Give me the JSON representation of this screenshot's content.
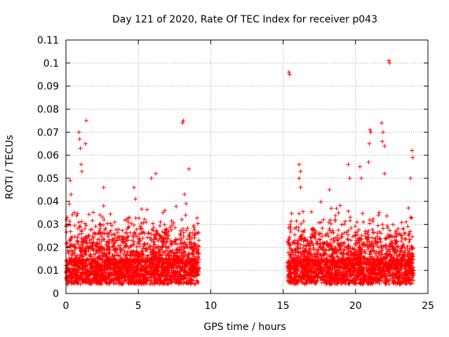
{
  "chart_data": {
    "type": "scatter",
    "title": "Day 121 of 2020, Rate Of TEC Index for receiver p043",
    "xlabel": "GPS time / hours",
    "ylabel": "ROTI / TECUs",
    "xlim": [
      0,
      25
    ],
    "ylim": [
      0,
      0.11
    ],
    "xticks": [
      0,
      5,
      10,
      15,
      20,
      25
    ],
    "xtick_labels": [
      "0",
      "5",
      "10",
      "15",
      "20",
      "25"
    ],
    "yticks": [
      0,
      0.01,
      0.02,
      0.03,
      0.04,
      0.05,
      0.06,
      0.07,
      0.08,
      0.09,
      0.1,
      0.11
    ],
    "ytick_labels": [
      "0",
      "0.01",
      "0.02",
      "0.03",
      "0.04",
      "0.05",
      "0.06",
      "0.07",
      "0.08",
      "0.09",
      "0.1",
      "0.11"
    ],
    "grid": true,
    "marker": "+",
    "color": "#ff0000",
    "series": [
      {
        "name": "p043 ROTI",
        "segments": [
          [
            0.0,
            9.2
          ],
          [
            15.3,
            24.0
          ]
        ],
        "notable_points": [
          [
            0.3,
            0.049
          ],
          [
            0.35,
            0.043
          ],
          [
            0.9,
            0.07
          ],
          [
            0.95,
            0.067
          ],
          [
            1.0,
            0.063
          ],
          [
            1.05,
            0.056
          ],
          [
            1.1,
            0.053
          ],
          [
            1.4,
            0.075
          ],
          [
            1.35,
            0.065
          ],
          [
            2.6,
            0.046
          ],
          [
            2.6,
            0.038
          ],
          [
            4.2,
            0.032
          ],
          [
            4.7,
            0.046
          ],
          [
            4.8,
            0.041
          ],
          [
            5.9,
            0.05
          ],
          [
            6.2,
            0.052
          ],
          [
            8.1,
            0.075
          ],
          [
            8.05,
            0.074
          ],
          [
            8.2,
            0.043
          ],
          [
            8.5,
            0.054
          ],
          [
            15.4,
            0.096
          ],
          [
            15.45,
            0.095
          ],
          [
            16.1,
            0.056
          ],
          [
            16.2,
            0.053
          ],
          [
            16.1,
            0.05
          ],
          [
            16.2,
            0.046
          ],
          [
            18.2,
            0.045
          ],
          [
            19.5,
            0.056
          ],
          [
            19.6,
            0.05
          ],
          [
            20.3,
            0.055
          ],
          [
            20.4,
            0.05
          ],
          [
            20.9,
            0.057
          ],
          [
            21.0,
            0.071
          ],
          [
            21.05,
            0.07
          ],
          [
            20.95,
            0.065
          ],
          [
            21.8,
            0.074
          ],
          [
            21.9,
            0.07
          ],
          [
            21.85,
            0.066
          ],
          [
            22.0,
            0.064
          ],
          [
            22.3,
            0.101
          ],
          [
            22.35,
            0.1
          ],
          [
            22.0,
            0.052
          ],
          [
            23.9,
            0.062
          ],
          [
            23.95,
            0.059
          ],
          [
            23.8,
            0.05
          ]
        ]
      }
    ]
  }
}
